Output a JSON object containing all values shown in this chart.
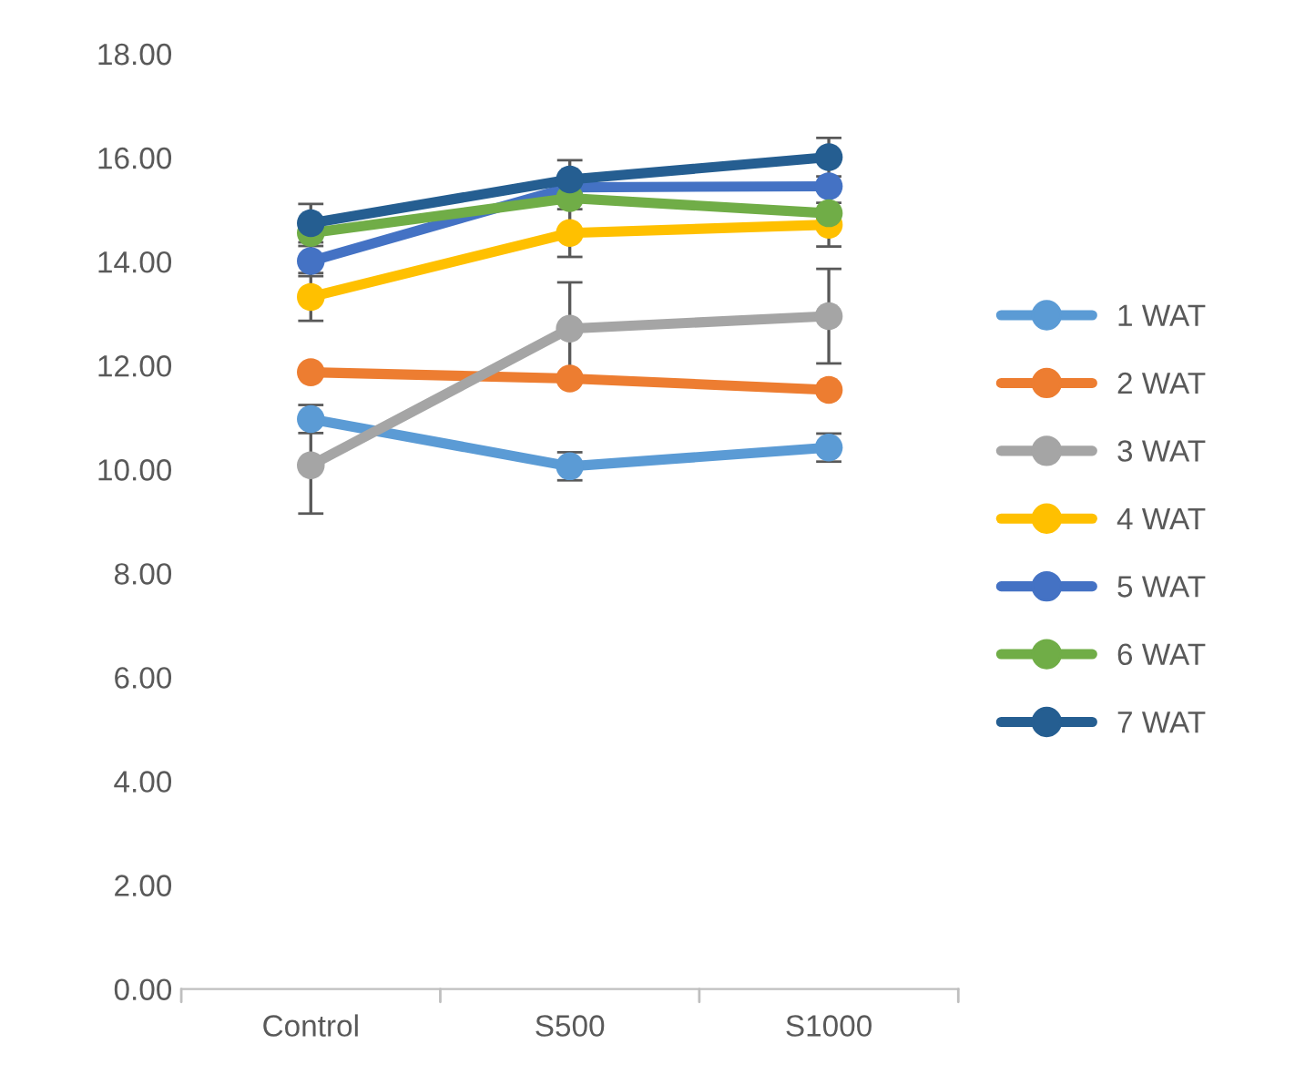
{
  "chart_data": {
    "type": "line",
    "categories": [
      "Control",
      "S500",
      "S1000"
    ],
    "ylim": [
      0,
      18
    ],
    "yticks": [
      {
        "value": 0,
        "label": "0.00"
      },
      {
        "value": 2,
        "label": "2.00"
      },
      {
        "value": 4,
        "label": "4.00"
      },
      {
        "value": 6,
        "label": "6.00"
      },
      {
        "value": 8,
        "label": "8.00"
      },
      {
        "value": 10,
        "label": "10.00"
      },
      {
        "value": 12,
        "label": "12.00"
      },
      {
        "value": 14,
        "label": "14.00"
      },
      {
        "value": 16,
        "label": "16.00"
      },
      {
        "value": 18,
        "label": "18.00"
      }
    ],
    "grid": false,
    "legend": "right",
    "marker": "circle",
    "line_style": "solid",
    "series": [
      {
        "name": "1 WAT",
        "color": "#5b9bd5",
        "values": [
          10.97,
          10.06,
          10.42
        ],
        "errors": [
          0.27,
          0.27,
          0.27
        ]
      },
      {
        "name": "2 WAT",
        "color": "#ed7d31",
        "values": [
          11.87,
          11.75,
          11.53
        ]
      },
      {
        "name": "3 WAT",
        "color": "#a5a5a5",
        "values": [
          10.08,
          12.71,
          12.95
        ],
        "errors": [
          0.93,
          0.89,
          0.91
        ]
      },
      {
        "name": "4 WAT",
        "color": "#ffc000",
        "values": [
          13.32,
          14.55,
          14.71
        ],
        "errors": [
          0.46,
          0.46,
          0.42
        ]
      },
      {
        "name": "5 WAT",
        "color": "#4472c4",
        "values": [
          14.01,
          15.43,
          15.45
        ],
        "errors": [
          0.29,
          null,
          null
        ]
      },
      {
        "name": "6 WAT",
        "color": "#70ad47",
        "values": [
          14.55,
          15.22,
          14.93
        ]
      },
      {
        "name": "7 WAT",
        "color": "#255e91",
        "values": [
          14.74,
          15.58,
          16.01
        ],
        "errors": [
          0.37,
          0.37,
          0.37
        ]
      }
    ]
  }
}
